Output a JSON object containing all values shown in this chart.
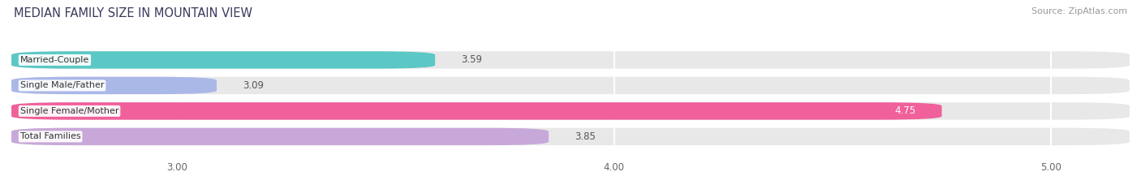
{
  "title": "MEDIAN FAMILY SIZE IN MOUNTAIN VIEW",
  "source": "Source: ZipAtlas.com",
  "categories": [
    "Married-Couple",
    "Single Male/Father",
    "Single Female/Mother",
    "Total Families"
  ],
  "values": [
    3.59,
    3.09,
    4.75,
    3.85
  ],
  "bar_colors": [
    "#5bc8c5",
    "#aab8e8",
    "#f0609a",
    "#c8a8d8"
  ],
  "xlim_left": 2.62,
  "xlim_right": 5.18,
  "xticks": [
    3.0,
    4.0,
    5.0
  ],
  "xtick_labels": [
    "3.00",
    "4.00",
    "5.00"
  ],
  "bar_height": 0.68,
  "title_fontsize": 10.5,
  "source_fontsize": 8,
  "tick_fontsize": 8.5,
  "value_fontsize": 8.5,
  "category_fontsize": 8,
  "background_color": "#ffffff",
  "bar_bg_color": "#e8e8e8",
  "grid_color": "#ffffff",
  "value_label_color_dark": "#555555",
  "value_label_color_light": "#ffffff"
}
